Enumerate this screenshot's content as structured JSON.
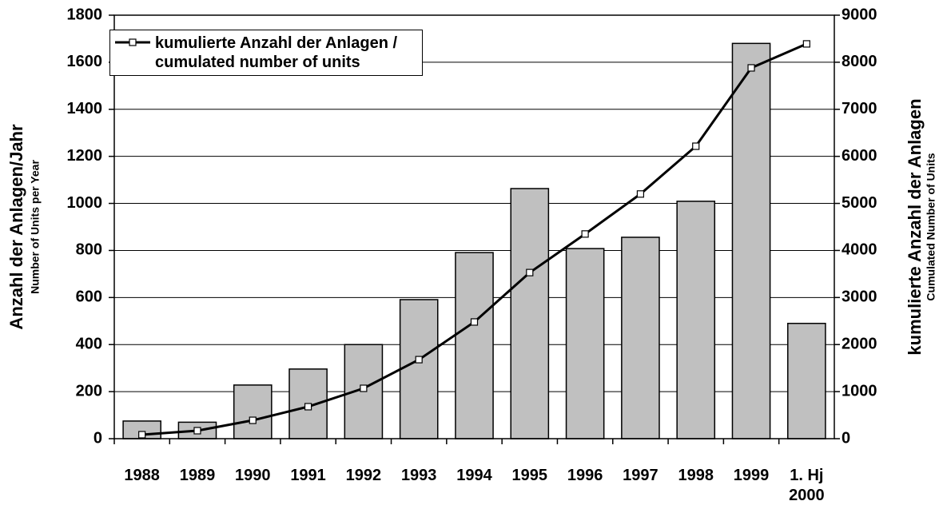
{
  "chart_data": {
    "type": "bar",
    "categories": [
      "1988",
      "1989",
      "1990",
      "1991",
      "1992",
      "1993",
      "1994",
      "1995",
      "1996",
      "1997",
      "1998",
      "1999",
      "1. Hj 2000"
    ],
    "series": [
      {
        "type": "bar",
        "color": "#c0c0c0",
        "values": [
          75,
          70,
          228,
          296,
          400,
          591,
          791,
          1063,
          808,
          856,
          1009,
          1680,
          490
        ]
      },
      {
        "type": "line",
        "axis": "y2",
        "color": "#000000",
        "name": "kumulierte Anzahl der Anlagen / cumulated number of units",
        "values": [
          85,
          170,
          390,
          680,
          1070,
          1680,
          2480,
          3530,
          4350,
          5200,
          6215,
          7880,
          8390
        ]
      }
    ],
    "y_label": "Anzahl der Anlagen/Jahr",
    "y_sublabel": "Number of Units per Year",
    "y2_label": "kumulierte Anzahl der Anlagen",
    "y2_sublabel": "Cumulated Number of Units",
    "ylim": [
      0,
      1800
    ],
    "yticks": [
      0,
      200,
      400,
      600,
      800,
      1000,
      1200,
      1400,
      1600,
      1800
    ],
    "y2lim": [
      0,
      9000
    ],
    "y2ticks": [
      0,
      1000,
      2000,
      3000,
      4000,
      5000,
      6000,
      7000,
      8000,
      9000
    ],
    "grid": true
  }
}
